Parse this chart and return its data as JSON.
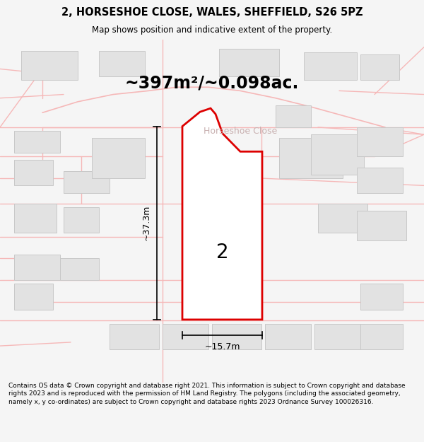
{
  "title": "2, HORSESHOE CLOSE, WALES, SHEFFIELD, S26 5PZ",
  "subtitle": "Map shows position and indicative extent of the property.",
  "area_text": "~397m²/~0.098ac.",
  "street_name": "Horseshoe Close",
  "plot_number": "2",
  "dim_height": "~37.3m",
  "dim_width": "~15.7m",
  "footer_text": "Contains OS data © Crown copyright and database right 2021. This information is subject to Crown copyright and database rights 2023 and is reproduced with the permission of HM Land Registry. The polygons (including the associated geometry, namely x, y co-ordinates) are subject to Crown copyright and database rights 2023 Ordnance Survey 100026316.",
  "bg_color": "#f5f5f5",
  "map_bg": "#ffffff",
  "plot_color_fill": "#ffffff",
  "plot_color_edge": "#dd0000",
  "road_color": "#f5b8b8",
  "building_color": "#e2e2e2",
  "building_edge": "#c8c8c8",
  "street_color": "#c8b0b0"
}
